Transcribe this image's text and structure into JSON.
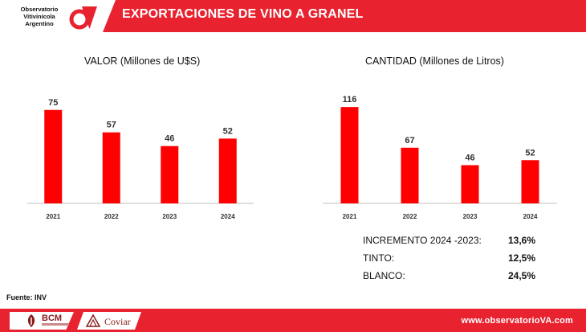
{
  "logo": {
    "line1": "Observatorio",
    "line2": "Vitivinícola",
    "line3": "Argentino",
    "icon": "ov-logo-icon"
  },
  "header": {
    "title": "EXPORTACIONES DE VINO A GRANEL"
  },
  "colors": {
    "accent": "#e8232f",
    "bar": "#ff0000",
    "brand_dark": "#8b1a1a"
  },
  "chart_data": [
    {
      "type": "bar",
      "title": "VALOR (Millones de U$S)",
      "categories": [
        "2021",
        "2022",
        "2023",
        "2024"
      ],
      "values": [
        75,
        57,
        46,
        52
      ],
      "ylim": [
        0,
        100
      ],
      "grid": false
    },
    {
      "type": "bar",
      "title": "CANTIDAD (Millones de Litros)",
      "categories": [
        "2021",
        "2022",
        "2023",
        "2024"
      ],
      "values": [
        116,
        67,
        46,
        52
      ],
      "ylim": [
        0,
        150
      ],
      "grid": false
    }
  ],
  "stats": [
    {
      "label": "INCREMENTO 2024 -2023:",
      "value": "13,6%"
    },
    {
      "label": "TINTO:",
      "value": "12,5%"
    },
    {
      "label": "BLANCO:",
      "value": "24,5%"
    }
  ],
  "footer": {
    "source": "Fuente: INV",
    "bcm": "BCM",
    "bcm_icon": "bcm-logo-icon",
    "coviar": "Coviar",
    "coviar_icon": "coviar-logo-icon",
    "url": "www.observatorioVA.com"
  }
}
